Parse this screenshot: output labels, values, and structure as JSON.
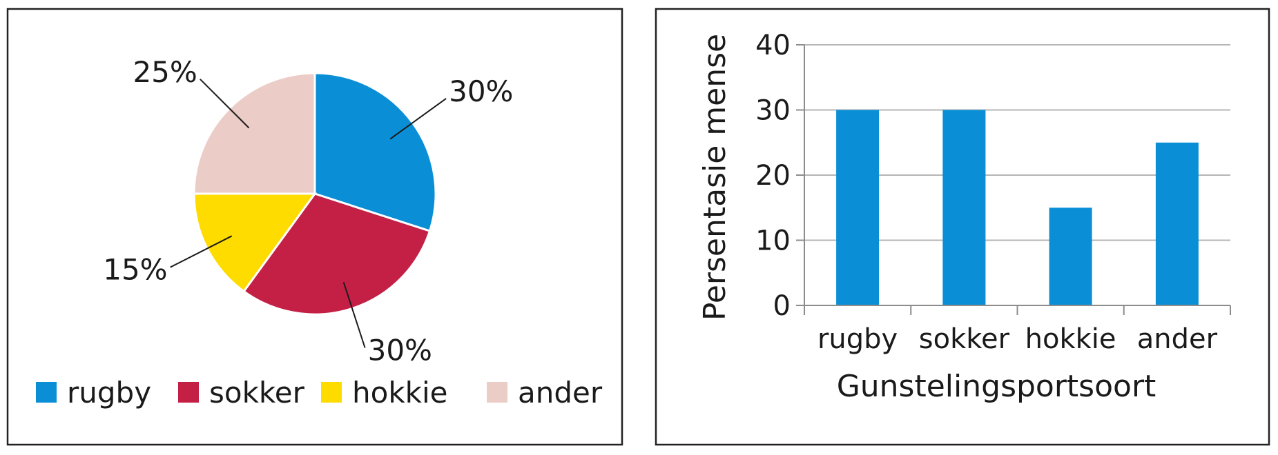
{
  "chart_data": [
    {
      "type": "pie",
      "categories": [
        "rugby",
        "sokker",
        "hokkie",
        "ander"
      ],
      "values": [
        30,
        30,
        15,
        25
      ],
      "labels": [
        "30%",
        "30%",
        "15%",
        "25%"
      ],
      "colors": [
        "#0a8fd6",
        "#c41f45",
        "#ffdc00",
        "#ecccc7"
      ],
      "legend": {
        "position": "bottom",
        "items": [
          "rugby",
          "sokker",
          "hokkie",
          "ander"
        ]
      }
    },
    {
      "type": "bar",
      "categories": [
        "rugby",
        "sokker",
        "hokkie",
        "ander"
      ],
      "values": [
        30,
        30,
        15,
        25
      ],
      "xlabel": "Gunstelingsportsoort",
      "ylabel": "Persentasie mense",
      "ylim": [
        0,
        40
      ],
      "yticks": [
        "0",
        "10",
        "20",
        "30",
        "40"
      ],
      "bar_color": "#0a8fd6",
      "grid": true
    }
  ]
}
